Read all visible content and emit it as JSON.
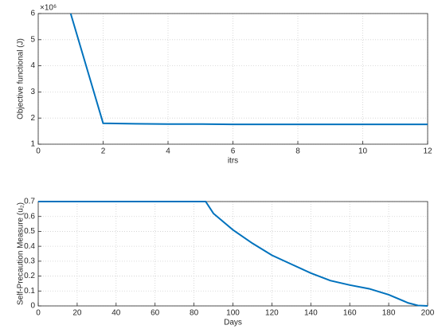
{
  "chart_data": [
    {
      "type": "line",
      "ylabel": "Objective functional (J)",
      "xlabel": "itrs",
      "multiplier": "×10⁶",
      "x": [
        1,
        2,
        3,
        4,
        5,
        6,
        7,
        8,
        9,
        10,
        11,
        12
      ],
      "values": [
        6,
        1.8,
        1.78,
        1.77,
        1.77,
        1.76,
        1.76,
        1.76,
        1.76,
        1.76,
        1.76,
        1.76
      ],
      "color": "#0072bd",
      "xlim": [
        0,
        12
      ],
      "ylim": [
        1,
        6
      ],
      "xticks": [
        0,
        2,
        4,
        6,
        8,
        10,
        12
      ],
      "yticks": [
        1,
        2,
        3,
        4,
        5,
        6
      ],
      "grid": true
    },
    {
      "type": "line",
      "ylabel": "Self-Precaution Measure (u₂)",
      "xlabel": "Days",
      "x": [
        0,
        20,
        40,
        60,
        80,
        86,
        90,
        100,
        110,
        120,
        130,
        140,
        150,
        160,
        170,
        180,
        190,
        195,
        200
      ],
      "values": [
        0.7,
        0.7,
        0.7,
        0.7,
        0.7,
        0.7,
        0.62,
        0.51,
        0.42,
        0.34,
        0.28,
        0.22,
        0.17,
        0.14,
        0.115,
        0.075,
        0.02,
        0.003,
        0
      ],
      "color": "#0072bd",
      "xlim": [
        0,
        200
      ],
      "ylim": [
        0,
        0.7
      ],
      "xticks": [
        0,
        20,
        40,
        60,
        80,
        100,
        120,
        140,
        160,
        180,
        200
      ],
      "yticks": [
        0,
        0.1,
        0.2,
        0.3,
        0.4,
        0.5,
        0.6,
        0.7
      ],
      "grid": true
    }
  ]
}
